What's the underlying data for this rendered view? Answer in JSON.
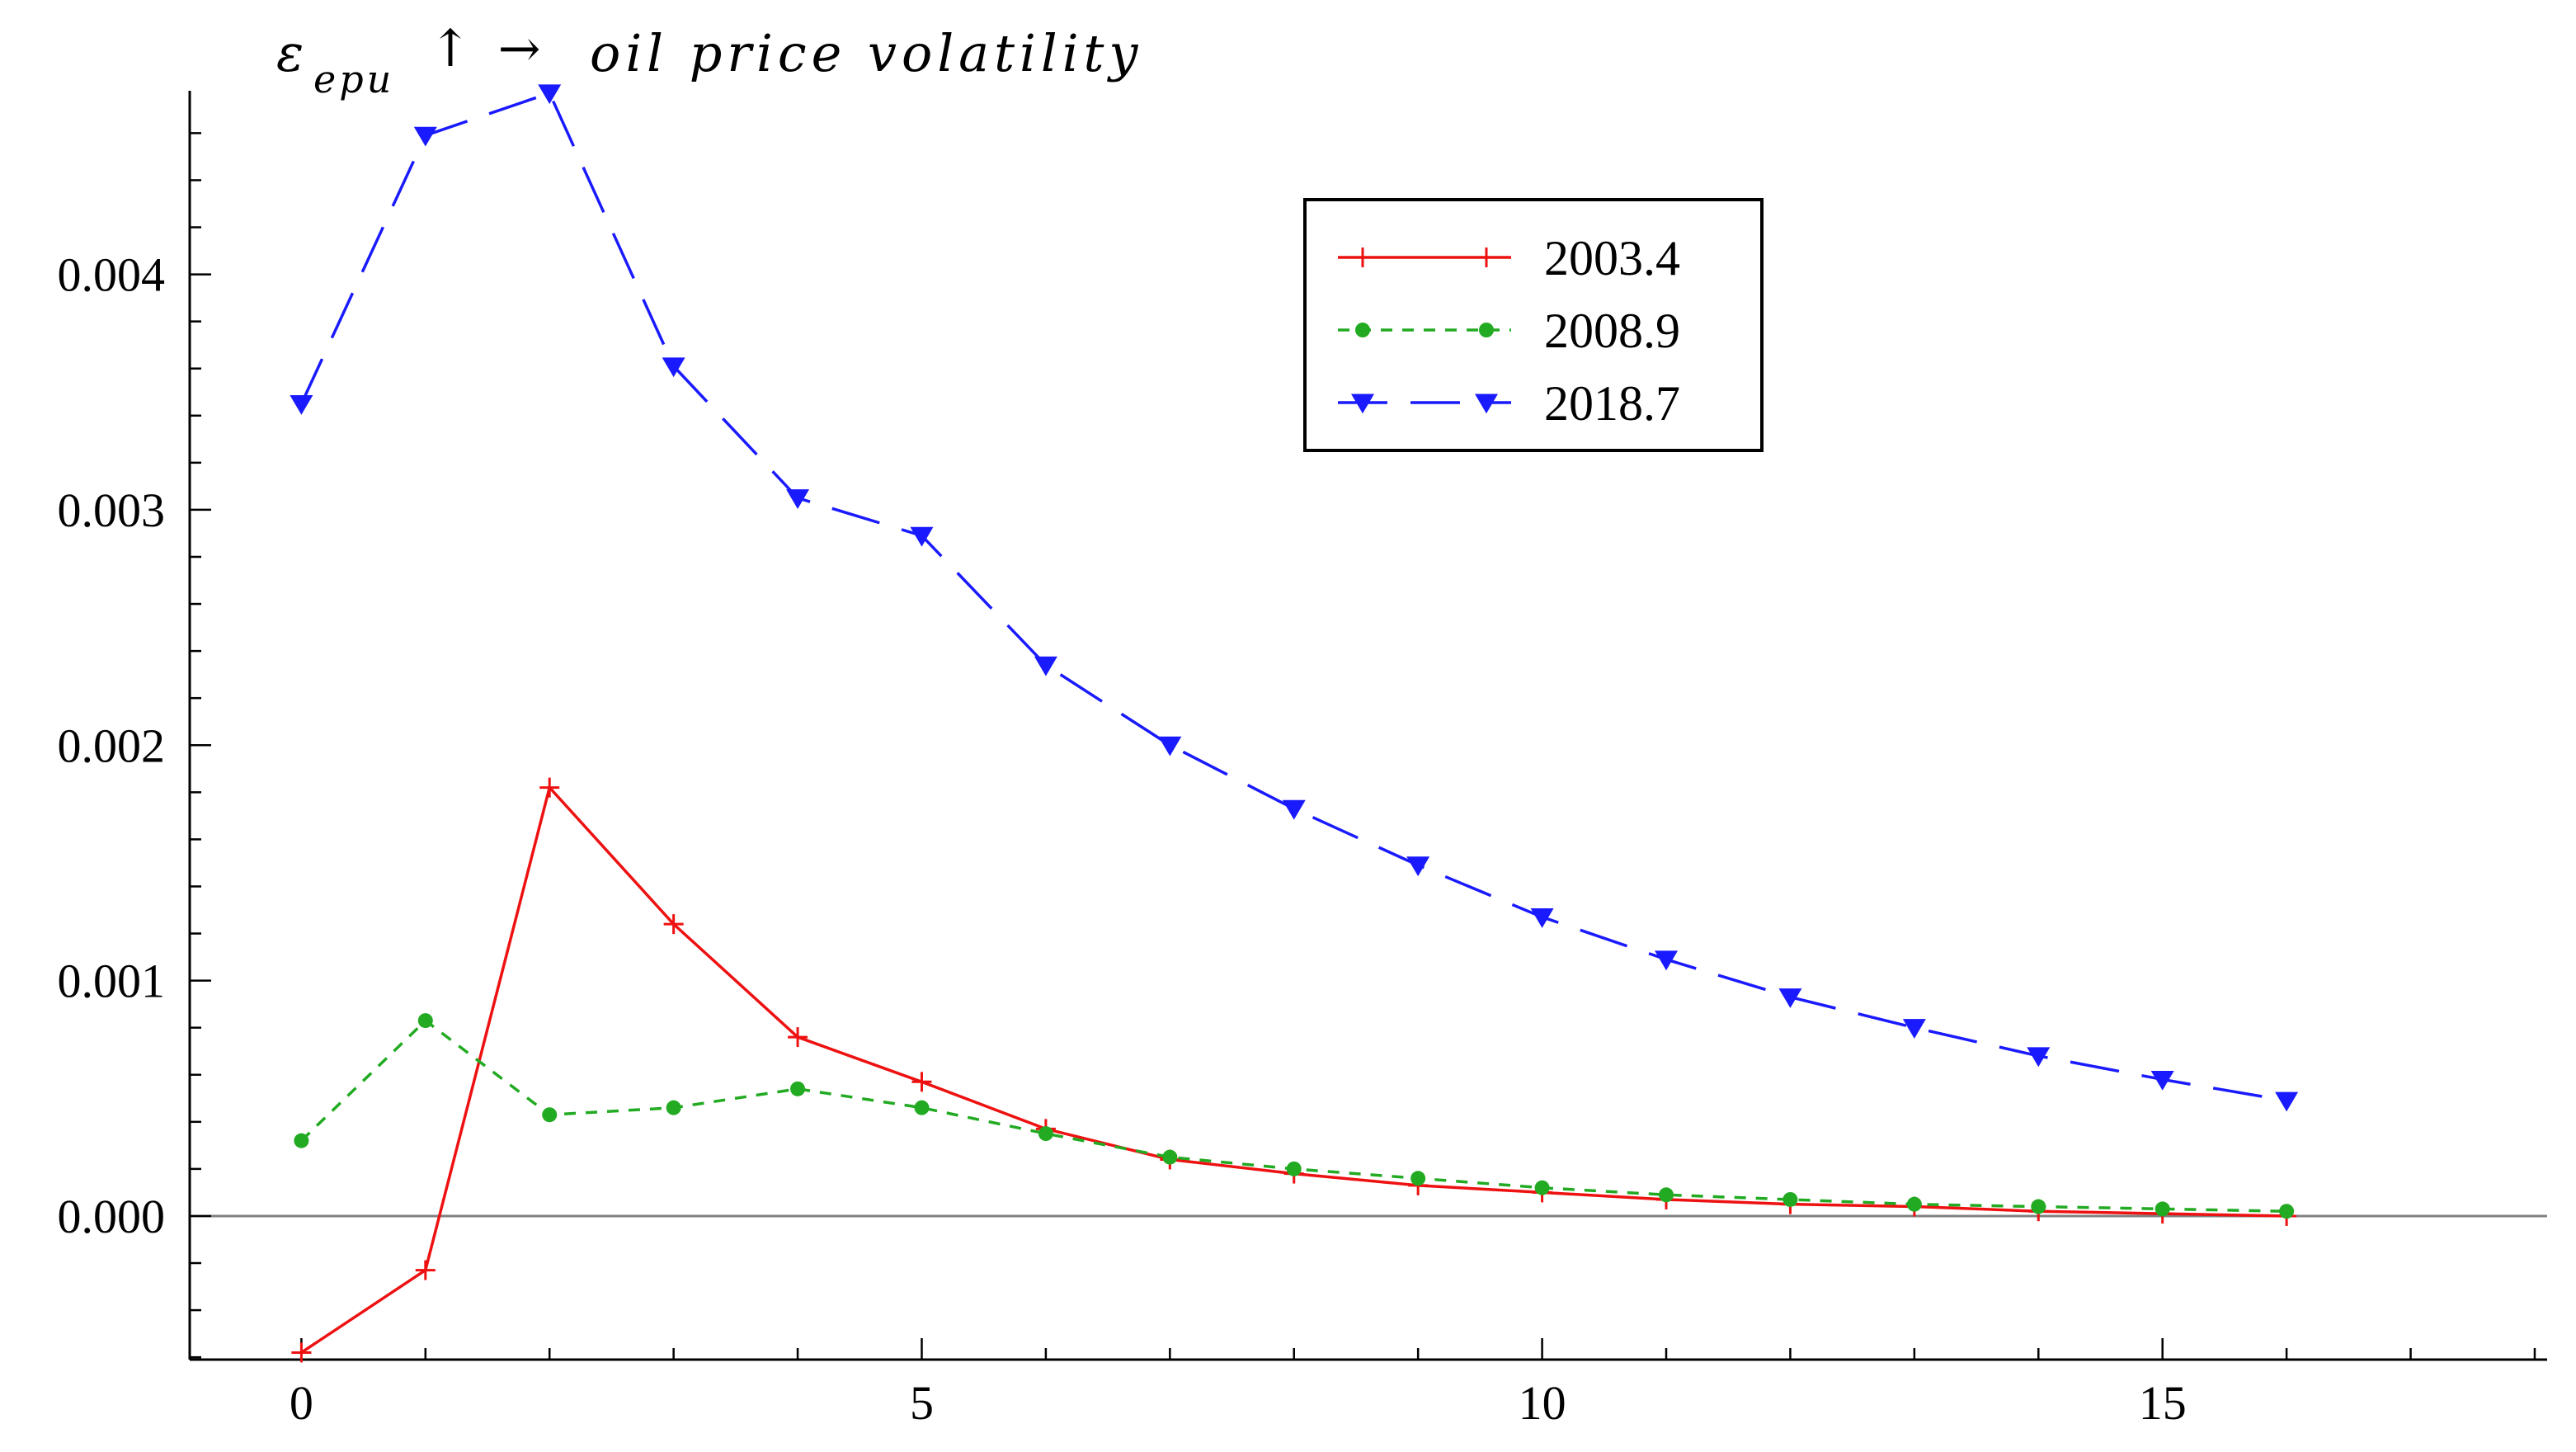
{
  "chart_data": {
    "type": "line",
    "title": {
      "symbol": "ε",
      "subscript": "epu",
      "arrows": "↑ →",
      "text": "oil price volatility"
    },
    "xlabel": "",
    "ylabel": "",
    "xlim": [
      -0.9,
      18.1
    ],
    "ylim": [
      -0.00061,
      0.00478
    ],
    "x_ticks": [
      0,
      5,
      10,
      15
    ],
    "x_tick_labels": [
      "0",
      "5",
      "10",
      "15"
    ],
    "y_ticks": [
      0.0,
      0.001,
      0.002,
      0.003,
      0.004
    ],
    "y_tick_labels": [
      "0.000",
      "0.001",
      "0.002",
      "0.003",
      "0.004"
    ],
    "zero_line": true,
    "grid": false,
    "legend_position": "top-right",
    "x": [
      0,
      1,
      2,
      3,
      4,
      5,
      6,
      7,
      8,
      9,
      10,
      11,
      12,
      13,
      14,
      15,
      16
    ],
    "series": [
      {
        "name": "2003.4",
        "color": "#ee1111",
        "line_style": "solid",
        "marker": "plus",
        "values": [
          -0.00058,
          -0.00023,
          0.00182,
          0.00124,
          0.00076,
          0.00057,
          0.00037,
          0.00024,
          0.00018,
          0.00013,
          0.0001,
          7e-05,
          5e-05,
          4e-05,
          2e-05,
          1e-05,
          0.0
        ]
      },
      {
        "name": "2008.9",
        "color": "#22aa22",
        "line_style": "dotted",
        "marker": "dot",
        "values": [
          0.00032,
          0.00083,
          0.00043,
          0.00046,
          0.00054,
          0.00046,
          0.00035,
          0.00025,
          0.0002,
          0.00016,
          0.00012,
          9e-05,
          7e-05,
          5e-05,
          4e-05,
          3e-05,
          2e-05
        ]
      },
      {
        "name": "2018.7",
        "color": "#1a1aff",
        "line_style": "dashed",
        "marker": "triangle-down",
        "values": [
          0.00345,
          0.00459,
          0.00477,
          0.00361,
          0.00305,
          0.00289,
          0.00234,
          0.002,
          0.00173,
          0.00149,
          0.00127,
          0.00109,
          0.00093,
          0.0008,
          0.00068,
          0.00058,
          0.00049
        ]
      }
    ]
  }
}
